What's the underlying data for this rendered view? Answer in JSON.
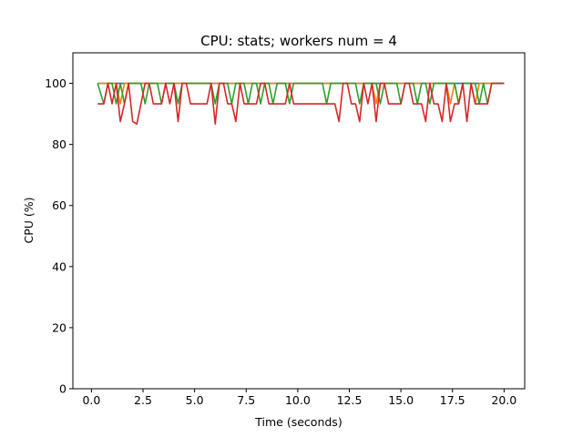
{
  "chart_data": {
    "type": "line",
    "title": "CPU: stats; workers num = 4",
    "xlabel": "Time (seconds)",
    "ylabel": "CPU (%)",
    "xlim": [
      -0.9,
      21.0
    ],
    "ylim": [
      0,
      110
    ],
    "xticks": [
      0.0,
      2.5,
      5.0,
      7.5,
      10.0,
      12.5,
      15.0,
      17.5,
      20.0
    ],
    "xtick_labels": [
      "0.0",
      "2.5",
      "5.0",
      "7.5",
      "10.0",
      "12.5",
      "15.0",
      "17.5",
      "20.0"
    ],
    "yticks": [
      0,
      20,
      40,
      60,
      80,
      100
    ],
    "ytick_labels": [
      "0",
      "20",
      "40",
      "60",
      "80",
      "100"
    ],
    "grid": false,
    "legend": "none",
    "series": [
      {
        "color": "#1f77b4",
        "x": [
          0.3,
          0.6,
          0.8,
          1.0,
          1.2,
          1.4,
          1.6,
          1.8,
          2.0,
          2.2,
          2.4,
          2.6,
          2.8,
          3.0,
          3.2,
          3.4,
          3.6,
          3.8,
          4.0,
          4.2,
          4.4,
          4.6,
          4.8,
          5.0,
          5.2,
          5.4,
          5.6,
          5.8,
          6.0,
          6.2,
          6.4,
          6.6,
          6.8,
          7.0,
          7.2,
          7.4,
          7.6,
          7.8,
          8.0,
          8.2,
          8.4,
          8.6,
          8.8,
          9.0,
          9.2,
          9.4,
          9.6,
          9.8,
          10.0,
          10.2,
          10.4,
          10.6,
          10.8,
          11.0,
          11.2,
          11.4,
          11.6,
          11.8,
          12.0,
          12.2,
          12.4,
          12.6,
          12.8,
          13.0,
          13.2,
          13.4,
          13.6,
          13.8,
          14.0,
          14.2,
          14.4,
          14.6,
          14.8,
          15.0,
          15.2,
          15.4,
          15.6,
          15.8,
          16.0,
          16.2,
          16.4,
          16.6,
          16.8,
          17.0,
          17.2,
          17.4,
          17.6,
          17.8,
          18.0,
          18.2,
          18.4,
          18.6,
          18.8,
          19.0,
          19.2,
          19.4,
          19.6,
          19.8,
          20.0
        ],
        "values": [
          100,
          100,
          100,
          100,
          100,
          100,
          100,
          100,
          100,
          100,
          100,
          100,
          100,
          100,
          100,
          100,
          100,
          100,
          100,
          100,
          100,
          100,
          100,
          100,
          100,
          100,
          100,
          100,
          100,
          100,
          100,
          100,
          100,
          100,
          100,
          100,
          100,
          100,
          100,
          100,
          100,
          100,
          100,
          100,
          100,
          100,
          100,
          100,
          100,
          100,
          100,
          100,
          100,
          100,
          100,
          100,
          100,
          100,
          100,
          100,
          100,
          100,
          100,
          100,
          100,
          100,
          100,
          100,
          100,
          100,
          100,
          100,
          100,
          100,
          100,
          100,
          100,
          100,
          100,
          100,
          100,
          100,
          100,
          100,
          100,
          100,
          100,
          100,
          100,
          100,
          100,
          100,
          100,
          100,
          100,
          100,
          100,
          100,
          100
        ]
      },
      {
        "color": "#ff7f0e",
        "x": [
          0.3,
          0.6,
          0.8,
          1.0,
          1.2,
          1.4,
          1.6,
          1.8,
          2.0,
          2.2,
          2.4,
          2.6,
          2.8,
          3.0,
          3.2,
          3.4,
          3.6,
          3.8,
          4.0,
          4.2,
          4.4,
          4.6,
          4.8,
          5.0,
          5.2,
          5.4,
          5.6,
          5.8,
          6.0,
          6.2,
          6.4,
          6.6,
          6.8,
          7.0,
          7.2,
          7.4,
          7.6,
          7.8,
          8.0,
          8.2,
          8.4,
          8.6,
          8.8,
          9.0,
          9.2,
          9.4,
          9.6,
          9.8,
          10.0,
          10.2,
          10.4,
          10.6,
          10.8,
          11.0,
          11.2,
          11.4,
          11.6,
          11.8,
          12.0,
          12.2,
          12.4,
          12.6,
          12.8,
          13.0,
          13.2,
          13.4,
          13.6,
          13.8,
          14.0,
          14.2,
          14.4,
          14.6,
          14.8,
          15.0,
          15.2,
          15.4,
          15.6,
          15.8,
          16.0,
          16.2,
          16.4,
          16.6,
          16.8,
          17.0,
          17.2,
          17.4,
          17.6,
          17.8,
          18.0,
          18.2,
          18.4,
          18.6,
          18.8,
          19.0,
          19.2,
          19.4,
          19.6,
          19.8,
          20.0
        ],
        "values": [
          100,
          100,
          100,
          100,
          100,
          93.3,
          100,
          100,
          100,
          100,
          100,
          100,
          100,
          100,
          100,
          100,
          100,
          100,
          100,
          100,
          100,
          100,
          100,
          100,
          100,
          100,
          100,
          100,
          100,
          100,
          100,
          100,
          100,
          100,
          100,
          100,
          100,
          100,
          100,
          100,
          100,
          100,
          100,
          100,
          100,
          100,
          100,
          100,
          100,
          100,
          100,
          100,
          100,
          100,
          100,
          100,
          100,
          100,
          100,
          100,
          100,
          100,
          100,
          100,
          100,
          100,
          100,
          93.3,
          100,
          100,
          100,
          100,
          100,
          100,
          100,
          100,
          100,
          100,
          100,
          100,
          100,
          100,
          100,
          100,
          100,
          93.3,
          100,
          93.3,
          100,
          100,
          100,
          93.3,
          100,
          100,
          100,
          100,
          100,
          100,
          100
        ]
      },
      {
        "color": "#2ca02c",
        "x": [
          0.3,
          0.6,
          0.8,
          1.0,
          1.2,
          1.4,
          1.6,
          1.8,
          2.0,
          2.2,
          2.4,
          2.6,
          2.8,
          3.0,
          3.2,
          3.4,
          3.6,
          3.8,
          4.0,
          4.2,
          4.4,
          4.6,
          4.8,
          5.0,
          5.2,
          5.4,
          5.6,
          5.8,
          6.0,
          6.2,
          6.4,
          6.6,
          6.8,
          7.0,
          7.2,
          7.4,
          7.6,
          7.8,
          8.0,
          8.2,
          8.4,
          8.6,
          8.8,
          9.0,
          9.2,
          9.4,
          9.6,
          9.8,
          10.0,
          10.2,
          10.4,
          10.6,
          10.8,
          11.0,
          11.2,
          11.4,
          11.6,
          11.8,
          12.0,
          12.2,
          12.4,
          12.6,
          12.8,
          13.0,
          13.2,
          13.4,
          13.6,
          13.8,
          14.0,
          14.2,
          14.4,
          14.6,
          14.8,
          15.0,
          15.2,
          15.4,
          15.6,
          15.8,
          16.0,
          16.2,
          16.4,
          16.6,
          16.8,
          17.0,
          17.2,
          17.4,
          17.6,
          17.8,
          18.0,
          18.2,
          18.4,
          18.6,
          18.8,
          19.0,
          19.2,
          19.4,
          19.6,
          19.8,
          20.0
        ],
        "values": [
          100,
          93.3,
          100,
          100,
          93.3,
          100,
          93.3,
          100,
          100,
          100,
          100,
          93.3,
          100,
          100,
          100,
          93.3,
          100,
          100,
          100,
          93.3,
          100,
          100,
          100,
          100,
          100,
          100,
          100,
          100,
          93.3,
          100,
          100,
          100,
          93.3,
          100,
          100,
          100,
          93.3,
          100,
          100,
          93.3,
          100,
          100,
          93.3,
          100,
          100,
          100,
          93.3,
          100,
          100,
          100,
          100,
          100,
          100,
          100,
          100,
          93.3,
          100,
          100,
          100,
          100,
          100,
          100,
          100,
          93.3,
          100,
          100,
          100,
          100,
          93.3,
          100,
          100,
          100,
          100,
          93.3,
          100,
          100,
          100,
          93.3,
          100,
          100,
          93.3,
          100,
          100,
          100,
          100,
          100,
          100,
          93.3,
          100,
          100,
          100,
          100,
          93.3,
          100,
          93.3,
          100,
          100,
          100,
          100
        ]
      },
      {
        "color": "#d62728",
        "x": [
          0.3,
          0.6,
          0.8,
          1.0,
          1.2,
          1.4,
          1.6,
          1.8,
          2.0,
          2.2,
          2.4,
          2.6,
          2.8,
          3.0,
          3.2,
          3.4,
          3.6,
          3.8,
          4.0,
          4.2,
          4.4,
          4.6,
          4.8,
          5.0,
          5.2,
          5.4,
          5.6,
          5.8,
          6.0,
          6.2,
          6.4,
          6.6,
          6.8,
          7.0,
          7.2,
          7.4,
          7.6,
          7.8,
          8.0,
          8.2,
          8.4,
          8.6,
          8.8,
          9.0,
          9.2,
          9.4,
          9.6,
          9.8,
          10.0,
          10.2,
          10.4,
          10.6,
          10.8,
          11.0,
          11.2,
          11.4,
          11.6,
          11.8,
          12.0,
          12.2,
          12.4,
          12.6,
          12.8,
          13.0,
          13.2,
          13.4,
          13.6,
          13.8,
          14.0,
          14.2,
          14.4,
          14.6,
          14.8,
          15.0,
          15.2,
          15.4,
          15.6,
          15.8,
          16.0,
          16.2,
          16.4,
          16.6,
          16.8,
          17.0,
          17.2,
          17.4,
          17.6,
          17.8,
          18.0,
          18.2,
          18.4,
          18.6,
          18.8,
          19.0,
          19.2,
          19.4,
          19.6,
          19.8,
          20.0
        ],
        "values": [
          93.3,
          93.3,
          100,
          93.3,
          100,
          87.5,
          93.3,
          100,
          87.5,
          86.7,
          93.3,
          100,
          100,
          93.3,
          93.3,
          93.3,
          100,
          93.3,
          100,
          87.5,
          100,
          100,
          93.3,
          93.3,
          93.3,
          93.3,
          93.3,
          100,
          86.7,
          100,
          100,
          93.3,
          93.3,
          87.5,
          100,
          93.3,
          93.3,
          93.3,
          93.3,
          100,
          100,
          93.3,
          93.3,
          93.3,
          93.3,
          93.3,
          100,
          93.3,
          93.3,
          93.3,
          93.3,
          93.3,
          93.3,
          93.3,
          93.3,
          93.3,
          93.3,
          93.3,
          87.5,
          100,
          100,
          93.3,
          93.3,
          87.5,
          100,
          93.3,
          100,
          87.5,
          100,
          100,
          93.3,
          93.3,
          93.3,
          93.3,
          100,
          100,
          93.3,
          93.3,
          93.3,
          87.5,
          100,
          93.3,
          93.3,
          87.5,
          100,
          87.5,
          93.3,
          93.3,
          100,
          87.5,
          100,
          93.3,
          93.3,
          93.3,
          93.3,
          100,
          100,
          100,
          100
        ]
      }
    ]
  }
}
